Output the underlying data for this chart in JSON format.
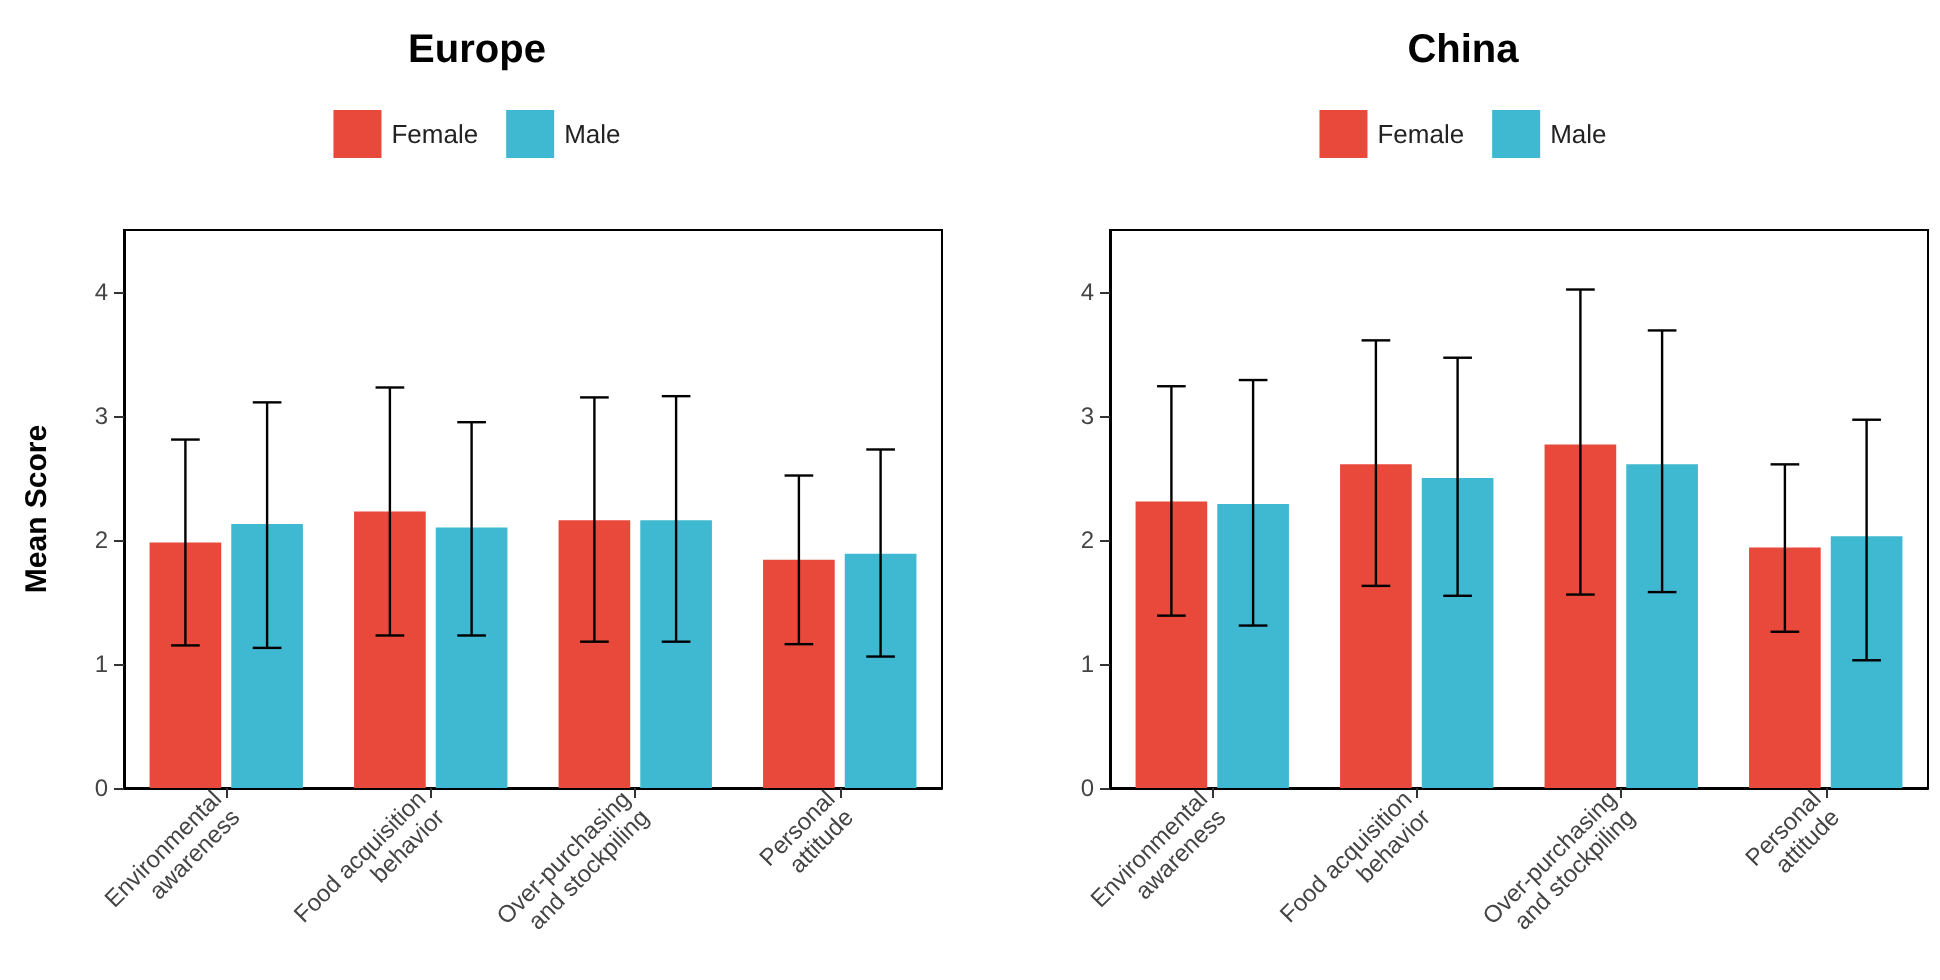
{
  "chart_data": [
    {
      "type": "bar",
      "title": "Europe",
      "ylabel": "Mean Score",
      "categories": [
        "Environmental awareness",
        "Food acquisition behavior",
        "Over-purchasing and stockpiling",
        "Personal attitude"
      ],
      "ylim": [
        0,
        4.5
      ],
      "yticks": [
        0,
        1,
        2,
        3,
        4
      ],
      "grid": false,
      "legend": "top",
      "series": [
        {
          "name": "Female",
          "color": "#e8493b",
          "values": [
            1.98,
            2.23,
            2.16,
            1.84
          ],
          "errors": [
            [
              1.15,
              2.81
            ],
            [
              1.23,
              3.23
            ],
            [
              1.18,
              3.15
            ],
            [
              1.16,
              2.52
            ]
          ]
        },
        {
          "name": "Male",
          "color": "#3fb8d1",
          "values": [
            2.13,
            2.1,
            2.16,
            1.89
          ],
          "errors": [
            [
              1.13,
              3.11
            ],
            [
              1.23,
              2.95
            ],
            [
              1.18,
              3.16
            ],
            [
              1.06,
              2.73
            ]
          ]
        }
      ]
    },
    {
      "type": "bar",
      "title": "China",
      "categories": [
        "Environmental awareness",
        "Food acquisition behavior",
        "Over-purchasing and stockpiling",
        "Personal attitude"
      ],
      "ylim": [
        0,
        4.5
      ],
      "yticks": [
        0,
        1,
        2,
        3,
        4
      ],
      "grid": false,
      "legend": "top",
      "series": [
        {
          "name": "Female",
          "color": "#e8493b",
          "values": [
            2.31,
            2.61,
            2.77,
            1.94
          ],
          "errors": [
            [
              1.39,
              3.24
            ],
            [
              1.63,
              3.61
            ],
            [
              1.56,
              4.02
            ],
            [
              1.26,
              2.61
            ]
          ]
        },
        {
          "name": "Male",
          "color": "#3fb8d1",
          "values": [
            2.29,
            2.5,
            2.61,
            2.03
          ],
          "errors": [
            [
              1.31,
              3.29
            ],
            [
              1.55,
              3.47
            ],
            [
              1.58,
              3.69
            ],
            [
              1.03,
              2.97
            ]
          ]
        }
      ]
    }
  ]
}
